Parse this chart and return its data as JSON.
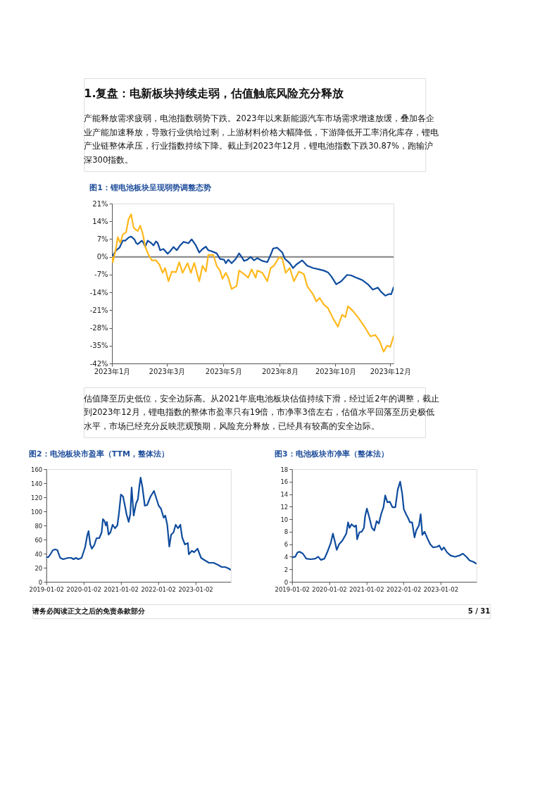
{
  "chart_data": [
    {
      "type": "line",
      "title": "图1：锂电池板块呈现弱势调整态势",
      "annotations": [
        "1.复盘：电新板块持续走弱，估值触底风险充分释放",
        "产能释放需求疲弱，电池指数弱势下跌。2023年以来新能源汽车市场需求增速放缓，叠加各企业产能加速释放，导致行业供给过剩，上游材料价格大幅降低，下游降低开工率消化库存，锂电产业链整体承压，行业指数持续下降。截止到2023年12月，锂电池指数下跌30.87%，跑输沪深300指数。",
        "估值降至历史低位，安全边际高。从2021年底电池板块估值持续下滑，经过近2年的调整，截止到2023年12月，锂电指数的整体市盈率只有19倍，市净率3倍左右，估值水平回落至历史极低水平，市场已经充分反映悲观预期，风险充分释放，已经具有较高的安全边际。",
        "请务必阅读正文之后的免责条款部分",
        "5 / 31"
      ],
      "xlim": [
        "2023-01-03",
        "2023-12-08"
      ],
      "xticks": [
        {
          "value": "2023-01-03",
          "label": "2023年1月"
        },
        {
          "value": "2023-03-10",
          "label": "2023年3月"
        },
        {
          "value": "2023-05-17",
          "label": "2023年5月"
        },
        {
          "value": "2023-07-24",
          "label": "2023年8月"
        },
        {
          "value": "2023-09-29",
          "label": "2023年10月"
        },
        {
          "value": "2023-12-04",
          "label": "2023年12月"
        }
      ],
      "ylim": [
        -42,
        21
      ],
      "yticks": [
        {
          "value": 21,
          "label": "21%"
        },
        {
          "value": 14,
          "label": "14%"
        },
        {
          "value": 7,
          "label": "7%"
        },
        {
          "value": 0,
          "label": "0%"
        },
        {
          "value": -7,
          "label": "-7%"
        },
        {
          "value": -14,
          "label": "-14%"
        },
        {
          "value": -21,
          "label": "-21%"
        },
        {
          "value": -28,
          "label": "-28%"
        },
        {
          "value": -35,
          "label": "-35%"
        },
        {
          "value": -42,
          "label": "-42%"
        }
      ],
      "grid": false,
      "legend": false,
      "line_style": "solid",
      "marker": "none",
      "ref_lines": [
        {
          "axis": "y",
          "value": 0,
          "color": "#808080"
        }
      ],
      "series": [
        {
          "color": "#0f4c9e",
          "x": [
            "2023-01-03",
            "2023-01-08",
            "2023-01-12",
            "2023-01-16",
            "2023-01-19",
            "2023-01-23",
            "2023-01-26",
            "2023-01-30",
            "2023-02-01",
            "2023-02-03",
            "2023-02-08",
            "2023-02-10",
            "2023-02-12",
            "2023-02-15",
            "2023-02-19",
            "2023-02-22",
            "2023-02-25",
            "2023-02-27",
            "2023-03-02",
            "2023-03-06",
            "2023-03-11",
            "2023-03-14",
            "2023-03-18",
            "2023-03-22",
            "2023-03-26",
            "2023-03-30",
            "2023-04-05",
            "2023-04-09",
            "2023-04-14",
            "2023-04-18",
            "2023-04-22",
            "2023-04-26",
            "2023-04-29",
            "2023-05-03",
            "2023-05-09",
            "2023-05-13",
            "2023-05-18",
            "2023-05-20",
            "2023-05-23",
            "2023-05-27",
            "2023-06-01",
            "2023-06-05",
            "2023-06-08",
            "2023-06-11",
            "2023-06-15",
            "2023-06-19",
            "2023-06-23",
            "2023-06-27",
            "2023-07-03",
            "2023-07-09",
            "2023-07-13",
            "2023-07-16",
            "2023-07-21",
            "2023-07-27",
            "2023-07-30",
            "2023-08-05",
            "2023-08-09",
            "2023-08-13",
            "2023-08-20",
            "2023-08-26",
            "2023-09-02",
            "2023-09-09",
            "2023-09-15",
            "2023-09-20",
            "2023-09-24",
            "2023-09-30",
            "2023-10-06",
            "2023-10-13",
            "2023-10-18",
            "2023-10-24",
            "2023-10-31",
            "2023-11-07",
            "2023-11-13",
            "2023-11-19",
            "2023-11-23",
            "2023-11-28",
            "2023-12-03",
            "2023-12-05",
            "2023-12-08"
          ],
          "values": [
            0,
            2.6,
            3.6,
            6.4,
            6.4,
            7.6,
            8,
            6.9,
            5.5,
            5,
            6.4,
            5.5,
            4,
            6.4,
            5.5,
            4.5,
            6.1,
            5.5,
            2.6,
            3.1,
            1.2,
            2.2,
            3.9,
            2.6,
            4.5,
            5.9,
            5.4,
            6.9,
            4.5,
            1.7,
            3.1,
            4,
            2.6,
            2.2,
            1.4,
            -0.8,
            -1.1,
            -2.5,
            -1.1,
            -2.5,
            -0.8,
            1.4,
            0,
            -1.6,
            -1.1,
            0,
            -1.4,
            -0.5,
            -1.6,
            -2.1,
            0.8,
            3.3,
            3.6,
            1.7,
            -0.7,
            -2.5,
            -4.4,
            -3,
            -1.4,
            -3.5,
            -4.4,
            -4.9,
            -5.4,
            -6.1,
            -7.7,
            -10.8,
            -9.6,
            -7.1,
            -7.3,
            -8.2,
            -9.1,
            -10.8,
            -12.9,
            -12.1,
            -13.8,
            -15.3,
            -14.6,
            -14.8,
            -12
          ]
        },
        {
          "color": "#ffb81c",
          "x": [
            "2023-01-03",
            "2023-01-04",
            "2023-01-08",
            "2023-01-10",
            "2023-01-13",
            "2023-01-16",
            "2023-01-20",
            "2023-01-23",
            "2023-01-26",
            "2023-01-29",
            "2023-02-01",
            "2023-02-03",
            "2023-02-06",
            "2023-02-09",
            "2023-02-12",
            "2023-02-16",
            "2023-02-20",
            "2023-02-25",
            "2023-03-01",
            "2023-03-05",
            "2023-03-08",
            "2023-03-12",
            "2023-03-16",
            "2023-03-21",
            "2023-03-25",
            "2023-03-29",
            "2023-04-04",
            "2023-04-08",
            "2023-04-12",
            "2023-04-18",
            "2023-04-22",
            "2023-04-26",
            "2023-04-29",
            "2023-05-05",
            "2023-05-09",
            "2023-05-13",
            "2023-05-16",
            "2023-05-20",
            "2023-05-23",
            "2023-05-27",
            "2023-06-02",
            "2023-06-05",
            "2023-06-11",
            "2023-06-16",
            "2023-06-20",
            "2023-06-25",
            "2023-06-27",
            "2023-07-03",
            "2023-07-09",
            "2023-07-13",
            "2023-07-17",
            "2023-07-23",
            "2023-07-27",
            "2023-07-31",
            "2023-08-05",
            "2023-08-10",
            "2023-08-16",
            "2023-08-22",
            "2023-08-26",
            "2023-09-02",
            "2023-09-06",
            "2023-09-10",
            "2023-09-15",
            "2023-09-20",
            "2023-09-26",
            "2023-10-02",
            "2023-10-07",
            "2023-10-11",
            "2023-10-14",
            "2023-10-20",
            "2023-10-27",
            "2023-11-03",
            "2023-11-10",
            "2023-11-16",
            "2023-11-21",
            "2023-11-26",
            "2023-11-30",
            "2023-12-04",
            "2023-12-08"
          ],
          "values": [
            0,
            -2.1,
            3.6,
            7.8,
            5.5,
            8.8,
            9.7,
            14.9,
            16.8,
            11.6,
            10.6,
            10.2,
            12.3,
            9.2,
            4,
            0.8,
            -1.4,
            -1.4,
            -3,
            -6.3,
            -4.4,
            -9.6,
            -5.8,
            -6,
            -2.1,
            -6.3,
            -2.5,
            -6.3,
            -2.4,
            -9.6,
            -3.5,
            -5.8,
            0.8,
            0.8,
            -3.5,
            -5.4,
            -8.7,
            -6.3,
            -8.2,
            -12.7,
            -11.5,
            -5.4,
            -6.8,
            -8.2,
            -4.9,
            -8.2,
            -5.4,
            -6.3,
            -9.6,
            -4.4,
            -3.5,
            -0.2,
            -0.7,
            -6.3,
            -4.4,
            -9.6,
            -5.8,
            -6.8,
            -11.5,
            -14.8,
            -17.6,
            -16.2,
            -18.8,
            -20.2,
            -24.2,
            -27.5,
            -22.8,
            -23.7,
            -19.5,
            -21.3,
            -24.2,
            -27.5,
            -31.3,
            -30.8,
            -33.1,
            -37.4,
            -35,
            -35.5,
            -31.3
          ]
        }
      ]
    },
    {
      "type": "line",
      "title": "图2：电池板块市盈率（TTM，整体法）",
      "xlim": [
        "2019-01-02",
        "2023-12-14"
      ],
      "xticks": [
        "2019-01-02",
        "2020-01-02",
        "2021-01-02",
        "2022-01-02",
        "2023-01-02"
      ],
      "ylim": [
        0,
        160
      ],
      "yticks": [
        0,
        20,
        40,
        60,
        80,
        100,
        120,
        140,
        160
      ],
      "grid": false,
      "legend": false,
      "line_style": "solid",
      "marker": "none",
      "series": [
        {
          "color": "#0f4c9e",
          "x": [
            "2019-01-02",
            "2019-01-23",
            "2019-02-15",
            "2019-03-08",
            "2019-03-30",
            "2019-04-21",
            "2019-05-03",
            "2019-05-18",
            "2019-06-17",
            "2019-08-01",
            "2019-09-04",
            "2019-09-26",
            "2019-10-19",
            "2019-11-11",
            "2019-12-14",
            "2020-01-17",
            "2020-02-09",
            "2020-02-20",
            "2020-03-08",
            "2020-03-24",
            "2020-04-16",
            "2020-05-08",
            "2020-06-04",
            "2020-06-27",
            "2020-07-10",
            "2020-07-26",
            "2020-08-07",
            "2020-08-18",
            "2020-09-03",
            "2020-09-21",
            "2020-10-13",
            "2020-11-05",
            "2020-11-28",
            "2020-12-13",
            "2021-01-02",
            "2021-01-23",
            "2021-02-09",
            "2021-02-26",
            "2021-03-19",
            "2021-04-04",
            "2021-04-17",
            "2021-05-07",
            "2021-05-30",
            "2021-06-17",
            "2021-07-03",
            "2021-07-14",
            "2021-08-01",
            "2021-08-24",
            "2021-09-16",
            "2021-10-19",
            "2021-11-22",
            "2021-12-14",
            "2022-01-07",
            "2022-01-29",
            "2022-02-25",
            "2022-03-13",
            "2022-04-01",
            "2022-04-21",
            "2022-05-09",
            "2022-06-01",
            "2022-06-23",
            "2022-07-15",
            "2022-08-07",
            "2022-08-25",
            "2022-09-21",
            "2022-10-20",
            "2022-10-29",
            "2022-11-28",
            "2022-12-20",
            "2023-01-23",
            "2023-02-26",
            "2023-03-30",
            "2023-05-14",
            "2023-06-28",
            "2023-08-12",
            "2023-09-16",
            "2023-10-19",
            "2023-11-22",
            "2023-12-14"
          ],
          "values": [
            35,
            35,
            40,
            45,
            46,
            45,
            40,
            34,
            32,
            34,
            34,
            32,
            34,
            32,
            34,
            49,
            67,
            72,
            53,
            47,
            52,
            62,
            62,
            70,
            89,
            86,
            80,
            85,
            67,
            70,
            81,
            76,
            80,
            96,
            124,
            121,
            109,
            96,
            85,
            96,
            134,
            94,
            111,
            117,
            137,
            148,
            134,
            108,
            109,
            121,
            129,
            119,
            108,
            104,
            91,
            94,
            81,
            50,
            67,
            70,
            81,
            76,
            81,
            63,
            53,
            55,
            39,
            44,
            42,
            47,
            34,
            31,
            27,
            27,
            24,
            21,
            21,
            19,
            17
          ]
        }
      ]
    },
    {
      "type": "line",
      "title": "图3：电池板块市净率（整体法）",
      "xlim": [
        "2019-01-02",
        "2023-12-20"
      ],
      "xticks": [
        "2019-01-02",
        "2020-01-02",
        "2021-01-02",
        "2022-01-02",
        "2023-01-02"
      ],
      "ylim": [
        0,
        18
      ],
      "yticks": [
        0,
        2,
        4,
        6,
        8,
        10,
        12,
        14,
        16,
        18
      ],
      "grid": false,
      "legend": false,
      "line_style": "solid",
      "marker": "none",
      "series": [
        {
          "color": "#0f4c9e",
          "x": [
            "2019-01-02",
            "2019-02-03",
            "2019-02-25",
            "2019-03-17",
            "2019-04-19",
            "2019-05-22",
            "2019-07-06",
            "2019-08-19",
            "2019-09-16",
            "2019-10-14",
            "2019-11-17",
            "2019-12-19",
            "2020-01-18",
            "2020-02-08",
            "2020-02-25",
            "2020-03-17",
            "2020-04-09",
            "2020-05-12",
            "2020-06-19",
            "2020-07-06",
            "2020-07-21",
            "2020-08-09",
            "2020-09-05",
            "2020-09-23",
            "2020-10-03",
            "2020-10-25",
            "2020-11-17",
            "2020-12-09",
            "2020-12-20",
            "2021-01-07",
            "2021-01-29",
            "2021-02-25",
            "2021-03-21",
            "2021-04-13",
            "2021-05-05",
            "2021-05-27",
            "2021-06-19",
            "2021-07-06",
            "2021-07-28",
            "2021-08-20",
            "2021-09-16",
            "2021-10-14",
            "2021-11-06",
            "2021-11-30",
            "2021-12-20",
            "2022-01-05",
            "2022-01-27",
            "2022-02-19",
            "2022-03-06",
            "2022-03-28",
            "2022-04-20",
            "2022-05-07",
            "2022-06-03",
            "2022-06-20",
            "2022-07-06",
            "2022-07-28",
            "2022-08-26",
            "2022-09-22",
            "2022-10-19",
            "2022-11-28",
            "2022-12-20",
            "2023-01-12",
            "2023-02-03",
            "2023-03-06",
            "2023-04-09",
            "2023-05-23",
            "2023-07-06",
            "2023-08-09",
            "2023-09-12",
            "2023-10-14",
            "2023-11-17",
            "2023-12-20"
          ],
          "values": [
            3.9,
            4.0,
            4.7,
            4.8,
            4.5,
            3.7,
            3.6,
            3.7,
            4.0,
            3.5,
            3.7,
            4.9,
            6.2,
            7.7,
            6.6,
            5.1,
            6.0,
            6.6,
            7.7,
            9.5,
            8.6,
            9.2,
            8.8,
            9.0,
            6.8,
            7.9,
            8.0,
            8.6,
            10.4,
            11.7,
            10.4,
            8.6,
            8.2,
            9.7,
            9.3,
            10.8,
            11.9,
            13.8,
            12.7,
            12.8,
            11.9,
            11.9,
            14.7,
            16.0,
            14.1,
            11.6,
            10.8,
            10.1,
            9.5,
            9.5,
            7.1,
            8.2,
            9.0,
            10.8,
            7.5,
            8.0,
            6.9,
            6.0,
            5.5,
            5.6,
            5.8,
            5.1,
            5.5,
            4.7,
            4.2,
            4.0,
            4.2,
            4.5,
            4.0,
            3.4,
            3.2,
            2.9
          ]
        }
      ]
    }
  ]
}
